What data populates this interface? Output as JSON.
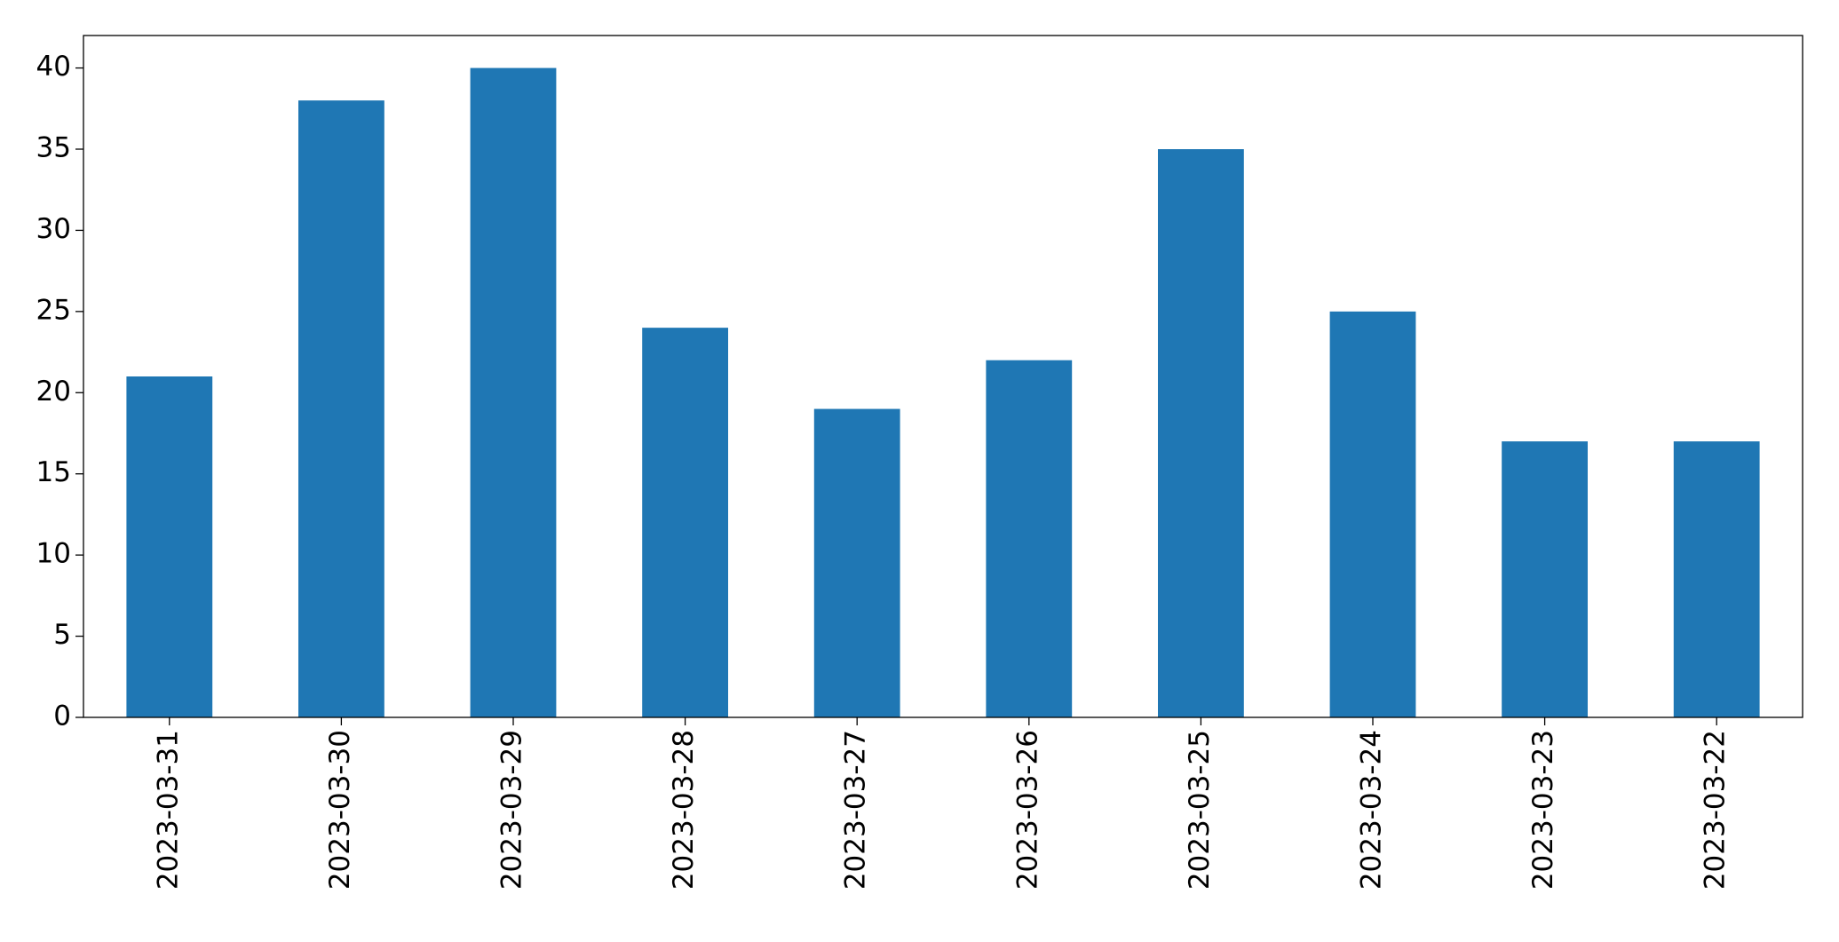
{
  "chart_data": {
    "type": "bar",
    "categories": [
      "2023-03-31",
      "2023-03-30",
      "2023-03-29",
      "2023-03-28",
      "2023-03-27",
      "2023-03-26",
      "2023-03-25",
      "2023-03-24",
      "2023-03-23",
      "2023-03-22"
    ],
    "values": [
      21,
      38,
      40,
      24,
      19,
      22,
      35,
      25,
      17,
      17
    ],
    "color": "#1f77b4",
    "ylim": [
      0,
      42
    ],
    "yticks": [
      0,
      5,
      10,
      15,
      20,
      25,
      30,
      35,
      40
    ],
    "grid": false
  }
}
